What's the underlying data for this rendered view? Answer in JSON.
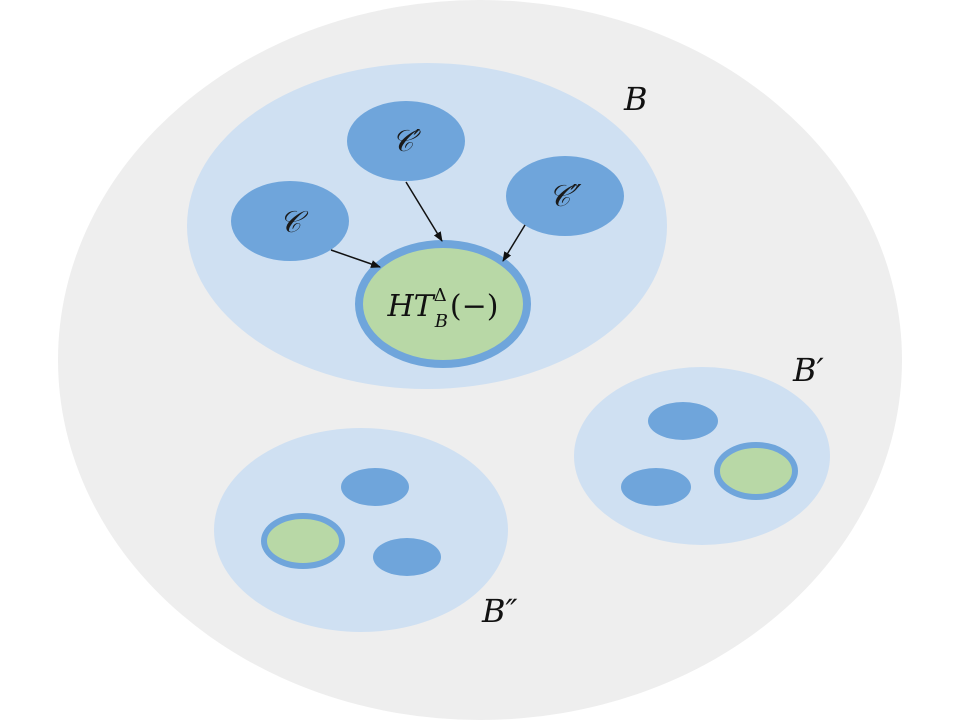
{
  "colors": {
    "universe": "#eeeeee",
    "region": "#cfe0f2",
    "category": "#6fa5db",
    "target_fill": "#b8d8a6",
    "target_ring": "#6fa5db",
    "arrow": "#111111"
  },
  "regions": {
    "b_main": {
      "label": "B"
    },
    "b_prime": {
      "label": "B′"
    },
    "b_double_prime": {
      "label": "B″"
    }
  },
  "categories": {
    "c": {
      "label": "𝒞"
    },
    "c_prime": {
      "label": "𝒞′"
    },
    "c_double_prime": {
      "label": "𝒞″"
    }
  },
  "target": {
    "base": "HT",
    "subscript": "B",
    "superscript": "Δ",
    "argument": "(−)"
  }
}
